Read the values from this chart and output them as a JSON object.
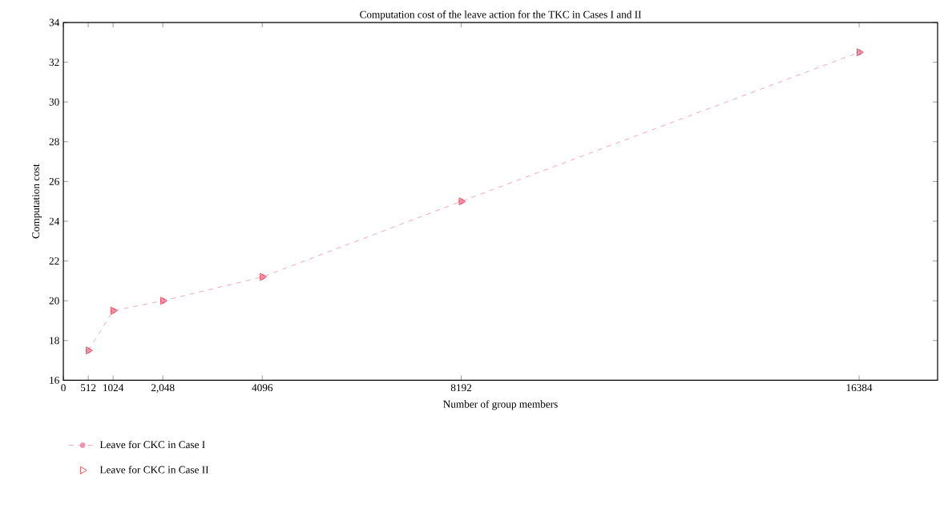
{
  "chart_data": {
    "type": "line",
    "title": "Computation cost of the leave action for the TKC in Cases I and II",
    "xlabel": "Number of group members",
    "ylabel": "Computation cost",
    "x": [
      512,
      1024,
      2048,
      4096,
      8192,
      16384
    ],
    "series": [
      {
        "name": "Leave for CKC in Case I",
        "color": "#f490ad",
        "marker": "circle",
        "line_style": "dashed",
        "values": [
          17.5,
          19.5,
          20,
          21.2,
          25,
          32.5
        ]
      },
      {
        "name": "Leave for CKC in Case II",
        "type": "scatter",
        "color": "#e0303a",
        "marker": "triangle",
        "values": [
          17.5,
          19.5,
          20,
          21.2,
          25,
          32.5
        ]
      }
    ],
    "xlim": [
      0,
      18000
    ],
    "ylim": [
      16,
      34
    ],
    "xticks": [
      0,
      512,
      1024,
      {
        "value": 2048,
        "label": "2,048"
      },
      4096,
      8192,
      16384
    ],
    "yticks": [
      16,
      18,
      20,
      22,
      24,
      26,
      28,
      30,
      32,
      34
    ],
    "grid": false,
    "legend": "bottom left"
  }
}
